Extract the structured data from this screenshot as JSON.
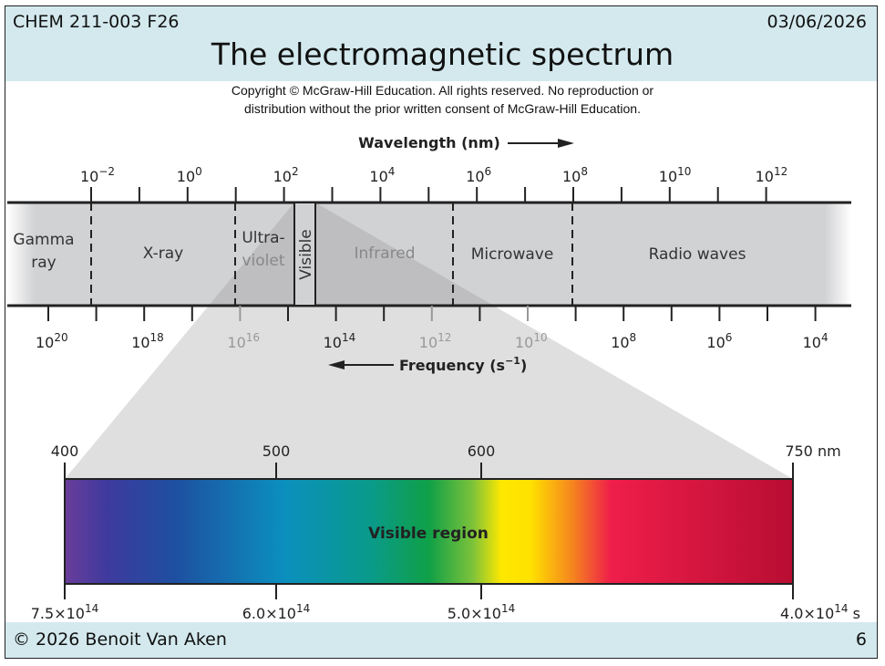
{
  "header": {
    "course": "CHEM 211-003 F26",
    "date": "03/06/2026",
    "title": "The electromagnetic spectrum"
  },
  "copyright": [
    "Copyright © McGraw-Hill Education.  All rights reserved. No reproduction or",
    "distribution without the prior written consent of McGraw-Hill Education."
  ],
  "wavelength_label": "Wavelength (nm)",
  "frequency_label": "Frequency  (s",
  "frequency_exp": "−1",
  "frequency_close": ")",
  "wavelength_ticks": [
    {
      "b": "10",
      "e": "−2"
    },
    {
      "b": "10",
      "e": "0"
    },
    {
      "b": "10",
      "e": "2"
    },
    {
      "b": "10",
      "e": "4"
    },
    {
      "b": "10",
      "e": "6"
    },
    {
      "b": "10",
      "e": "8"
    },
    {
      "b": "10",
      "e": "10"
    },
    {
      "b": "10",
      "e": "12"
    }
  ],
  "frequency_ticks": [
    {
      "b": "10",
      "e": "20"
    },
    {
      "b": "10",
      "e": "18"
    },
    {
      "b": "10",
      "e": "16"
    },
    {
      "b": "10",
      "e": "14"
    },
    {
      "b": "10",
      "e": "12"
    },
    {
      "b": "10",
      "e": "10"
    },
    {
      "b": "10",
      "e": "8"
    },
    {
      "b": "10",
      "e": "6"
    },
    {
      "b": "10",
      "e": "4"
    }
  ],
  "regions": {
    "gamma": [
      "Gamma",
      "ray"
    ],
    "xray": "X-ray",
    "uv": [
      "Ultra-",
      "violet"
    ],
    "visible": "Visible",
    "ir": "Infrared",
    "microwave": "Microwave",
    "radio": "Radio waves"
  },
  "visible_bar": {
    "label": "Visible region",
    "nm_ticks": [
      "400",
      "500",
      "600",
      "750 nm"
    ],
    "freq_ticks": [
      {
        "b": "7.5×10",
        "e": "14",
        "u": ""
      },
      {
        "b": "6.0×10",
        "e": "14",
        "u": ""
      },
      {
        "b": "5.0×10",
        "e": "14",
        "u": ""
      },
      {
        "b": "4.0×10",
        "e": "14",
        "u": " s"
      }
    ]
  },
  "footer": {
    "copyright": "© 2026 Benoit Van Aken",
    "page": "6"
  }
}
